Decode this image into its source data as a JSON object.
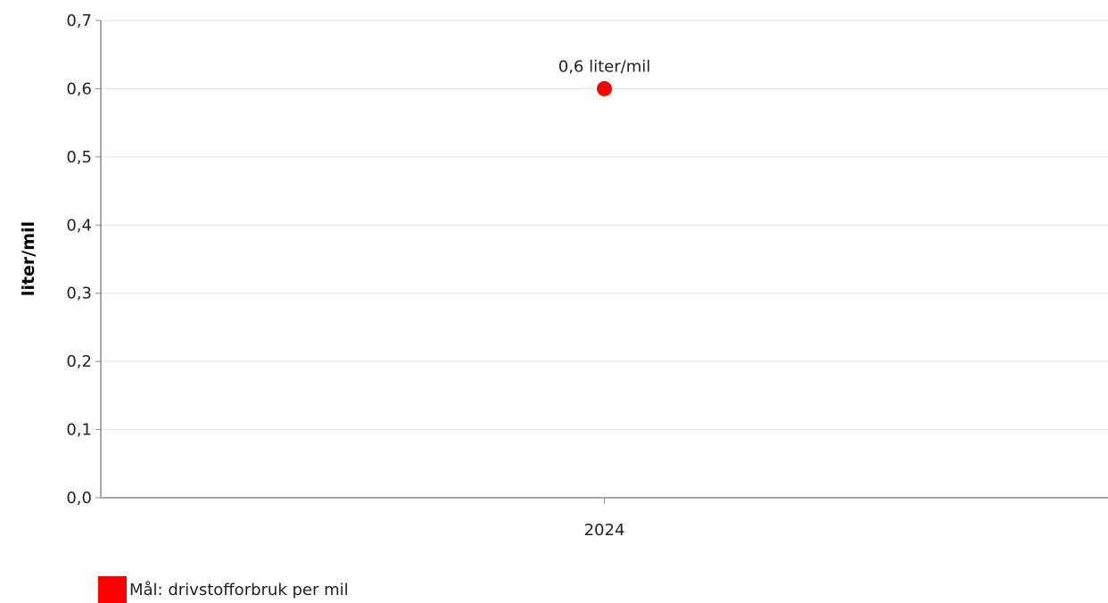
{
  "chart_data": {
    "type": "scatter",
    "title": "",
    "xlabel": "",
    "ylabel": "liter/mil",
    "categories": [
      "2024"
    ],
    "ylim": [
      0,
      0.7
    ],
    "yticks": [
      0,
      0.1,
      0.2,
      0.3,
      0.4,
      0.5,
      0.6,
      0.7
    ],
    "ytick_labels": [
      "0,0",
      "0,1",
      "0,2",
      "0,3",
      "0,4",
      "0,5",
      "0,6",
      "0,7"
    ],
    "grid": true,
    "legend_position": "bottom-left",
    "series": [
      {
        "name": "Mål: drivstofforbruk per mil",
        "color": "#ff0000",
        "values": [
          0.6
        ],
        "data_labels": [
          "0,6 liter/mil"
        ]
      }
    ]
  }
}
